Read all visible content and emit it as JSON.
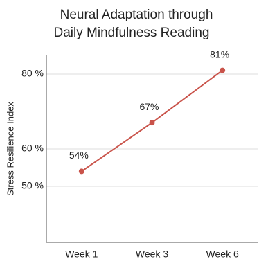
{
  "chart_data": {
    "type": "line",
    "title": [
      "Neural Adaptation through",
      "Daily Mindfulness Reading"
    ],
    "ylabel": "Stress Resilience Index",
    "categories": [
      "Week 1",
      "Week 3",
      "Week 6"
    ],
    "series": [
      {
        "name": "Stress Resilience Index",
        "color": "#c9534a",
        "values": [
          54,
          67,
          81
        ],
        "value_labels": [
          "54%",
          "67%",
          "81%"
        ]
      }
    ],
    "ylim": [
      35,
      85
    ],
    "yticks": [
      {
        "value": 50,
        "label": "50 %"
      },
      {
        "value": 60,
        "label": "60 %"
      },
      {
        "value": 80,
        "label": "80 %"
      }
    ],
    "grid": true
  }
}
